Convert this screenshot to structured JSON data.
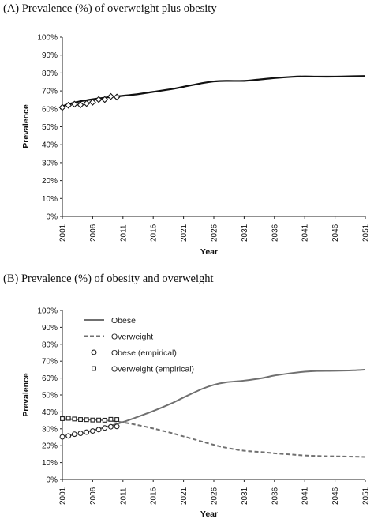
{
  "chart_data": [
    {
      "type": "line",
      "title": "(A) Prevalence (%) of overweight plus obesity",
      "xlabel": "Year",
      "ylabel": "Prevalence",
      "ylim": [
        0,
        100
      ],
      "y_ticks": [
        "0%",
        "10%",
        "20%",
        "30%",
        "40%",
        "50%",
        "60%",
        "70%",
        "80%",
        "90%",
        "100%"
      ],
      "x_ticks": [
        "2001",
        "2006",
        "2011",
        "2016",
        "2021",
        "2026",
        "2031",
        "2036",
        "2041",
        "2046",
        "2051"
      ],
      "xlim": [
        2001,
        2051
      ],
      "grid": false,
      "series": [
        {
          "kind": "line",
          "style": "solid",
          "color": "#111111",
          "x": [
            2001,
            2003,
            2005,
            2007,
            2009,
            2011,
            2013,
            2016,
            2019,
            2021,
            2024,
            2026,
            2028,
            2031,
            2033,
            2036,
            2039,
            2041,
            2043,
            2046,
            2049,
            2051
          ],
          "y": [
            61.5,
            63.5,
            64.8,
            65.8,
            66.6,
            67.3,
            68.0,
            69.5,
            71.0,
            72.3,
            74.3,
            75.3,
            75.6,
            75.6,
            76.2,
            77.2,
            77.9,
            78.1,
            78.0,
            78.0,
            78.2,
            78.3
          ]
        },
        {
          "kind": "scatter",
          "marker": "diamond",
          "color": "#111111",
          "x": [
            2001,
            2002,
            2003,
            2004,
            2005,
            2006,
            2007,
            2008,
            2009,
            2010
          ],
          "y": [
            60.8,
            62.0,
            62.6,
            62.2,
            63.0,
            63.7,
            65.2,
            65.2,
            66.9,
            66.6
          ]
        }
      ]
    },
    {
      "type": "line",
      "title": "(B) Prevalence (%) of obesity and overweight",
      "xlabel": "Year",
      "ylabel": "Prevalence",
      "ylim": [
        0,
        100
      ],
      "y_ticks": [
        "0%",
        "10%",
        "20%",
        "30%",
        "40%",
        "50%",
        "60%",
        "70%",
        "80%",
        "90%",
        "100%"
      ],
      "x_ticks": [
        "2001",
        "2006",
        "2011",
        "2016",
        "2021",
        "2026",
        "2031",
        "2036",
        "2041",
        "2046",
        "2051"
      ],
      "xlim": [
        2001,
        2051
      ],
      "grid": false,
      "legend_position": "top-left",
      "series": [
        {
          "name": "Obese",
          "kind": "line",
          "style": "solid",
          "color": "#707070",
          "x": [
            2001,
            2003,
            2006,
            2008,
            2011,
            2013,
            2016,
            2019,
            2021,
            2024,
            2026,
            2028,
            2031,
            2034,
            2036,
            2039,
            2041,
            2043,
            2046,
            2049,
            2051
          ],
          "y": [
            25.2,
            26.5,
            29.0,
            30.8,
            34.0,
            36.5,
            40.5,
            45.0,
            48.5,
            53.5,
            56.0,
            57.5,
            58.5,
            60.0,
            61.5,
            63.0,
            63.8,
            64.2,
            64.3,
            64.6,
            65.0
          ]
        },
        {
          "name": "Overweight",
          "kind": "line",
          "style": "dashed",
          "color": "#707070",
          "x": [
            2001,
            2004,
            2008,
            2011,
            2014,
            2016,
            2019,
            2021,
            2024,
            2026,
            2028,
            2031,
            2034,
            2036,
            2039,
            2041,
            2044,
            2046,
            2049,
            2051
          ],
          "y": [
            35.8,
            35.5,
            35.0,
            33.8,
            31.8,
            30.2,
            27.5,
            25.5,
            22.5,
            20.5,
            18.8,
            17.0,
            16.2,
            15.5,
            14.7,
            14.2,
            13.8,
            13.7,
            13.5,
            13.3
          ]
        },
        {
          "name": "Obese (empirical)",
          "kind": "scatter",
          "marker": "circle",
          "color": "#222222",
          "x": [
            2001,
            2002,
            2003,
            2004,
            2005,
            2006,
            2007,
            2008,
            2009,
            2010
          ],
          "y": [
            25.2,
            25.8,
            26.8,
            27.3,
            28.0,
            28.7,
            29.5,
            30.5,
            31.2,
            31.4
          ]
        },
        {
          "name": "Overweight (empirical)",
          "kind": "scatter",
          "marker": "square",
          "color": "#222222",
          "x": [
            2001,
            2002,
            2003,
            2004,
            2005,
            2006,
            2007,
            2008,
            2009,
            2010
          ],
          "y": [
            36.0,
            36.2,
            35.8,
            35.5,
            35.4,
            35.2,
            35.2,
            35.1,
            35.6,
            35.5
          ]
        }
      ]
    }
  ]
}
